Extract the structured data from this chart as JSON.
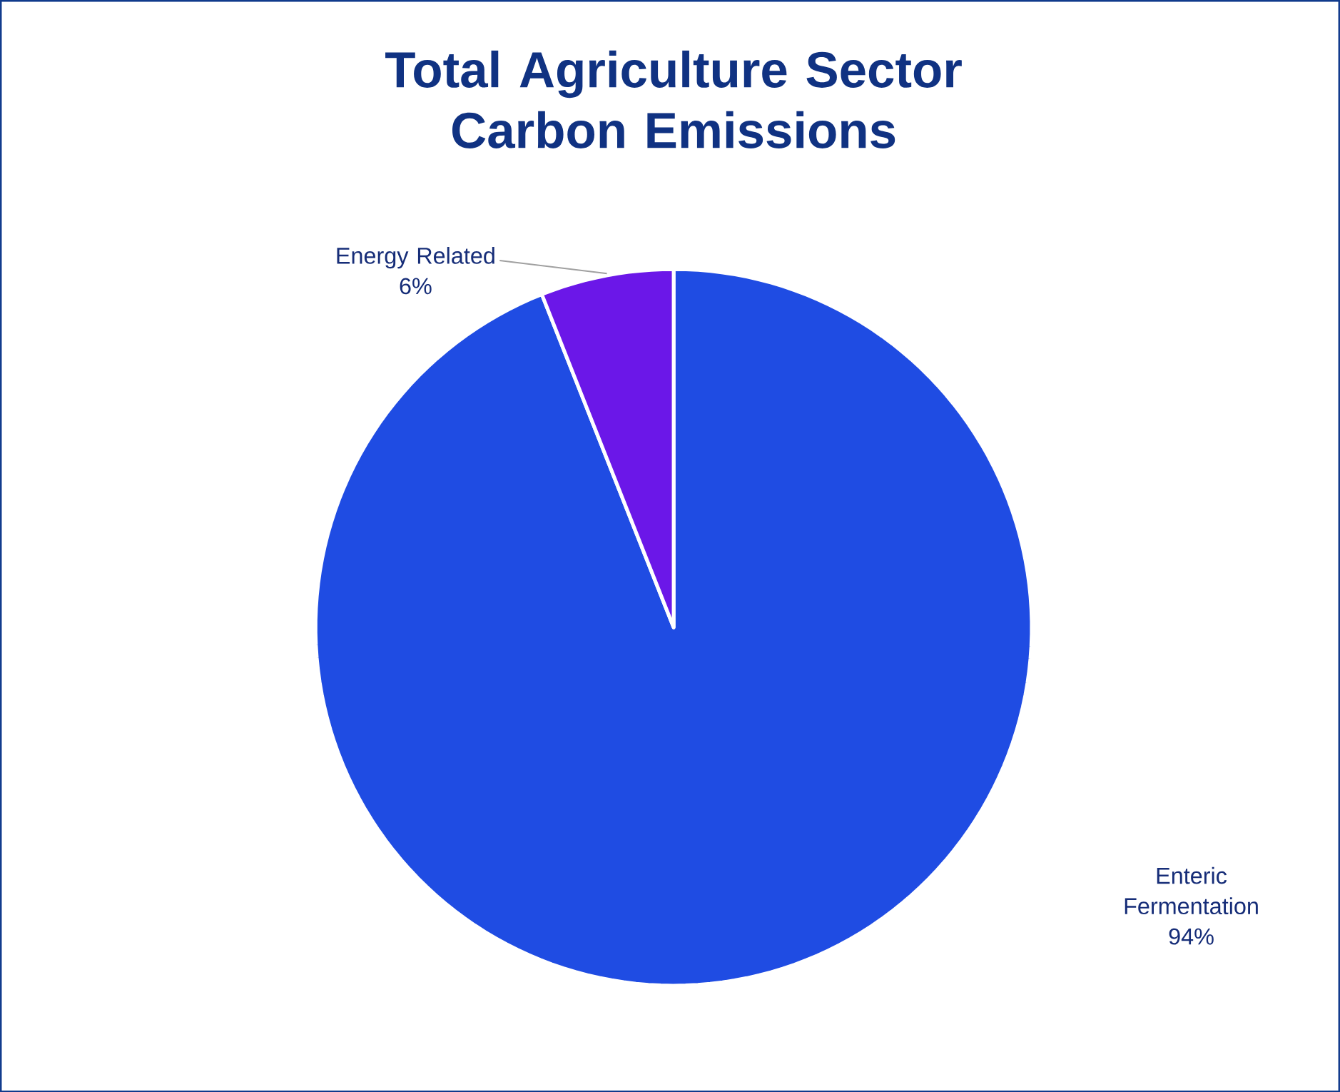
{
  "chart_data": {
    "type": "pie",
    "title": "Total Agriculture Sector Carbon Emissions",
    "categories": [
      "Enteric Fermentation",
      "Energy Related"
    ],
    "values": [
      94,
      6
    ],
    "colors": [
      "#1f4ce3",
      "#6b17e8"
    ],
    "value_labels": [
      "94%",
      "6%"
    ]
  }
}
